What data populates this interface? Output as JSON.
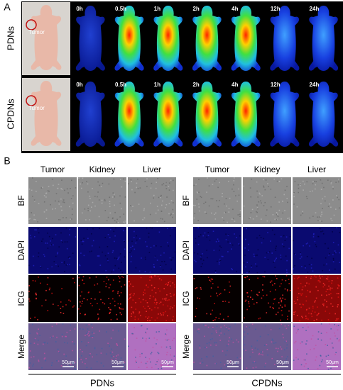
{
  "panel_a": {
    "label": "A",
    "rows": [
      {
        "name": "PDNs",
        "photo_label": "Tumor",
        "times": [
          "0h",
          "0.5h",
          "1h",
          "2h",
          "4h",
          "12h",
          "24h"
        ]
      },
      {
        "name": "CPDNs",
        "photo_label": "Tumor",
        "times": [
          "0h",
          "0.5h",
          "1h",
          "2h",
          "4h",
          "12h",
          "24h"
        ]
      }
    ]
  },
  "panel_b": {
    "label": "B",
    "groups": [
      {
        "name": "PDNs",
        "columns": [
          "Tumor",
          "Kidney",
          "Liver"
        ],
        "rows": [
          "BF",
          "DAPI",
          "ICG",
          "Merge"
        ],
        "scale_bars": [
          "50μm",
          "50μm",
          "50μm"
        ]
      },
      {
        "name": "CPDNs",
        "columns": [
          "Tumor",
          "Kidney",
          "Liver"
        ],
        "rows": [
          "BF",
          "DAPI",
          "ICG",
          "Merge"
        ],
        "scale_bars": [
          "50μm",
          "50μm",
          "50μm"
        ]
      }
    ]
  }
}
